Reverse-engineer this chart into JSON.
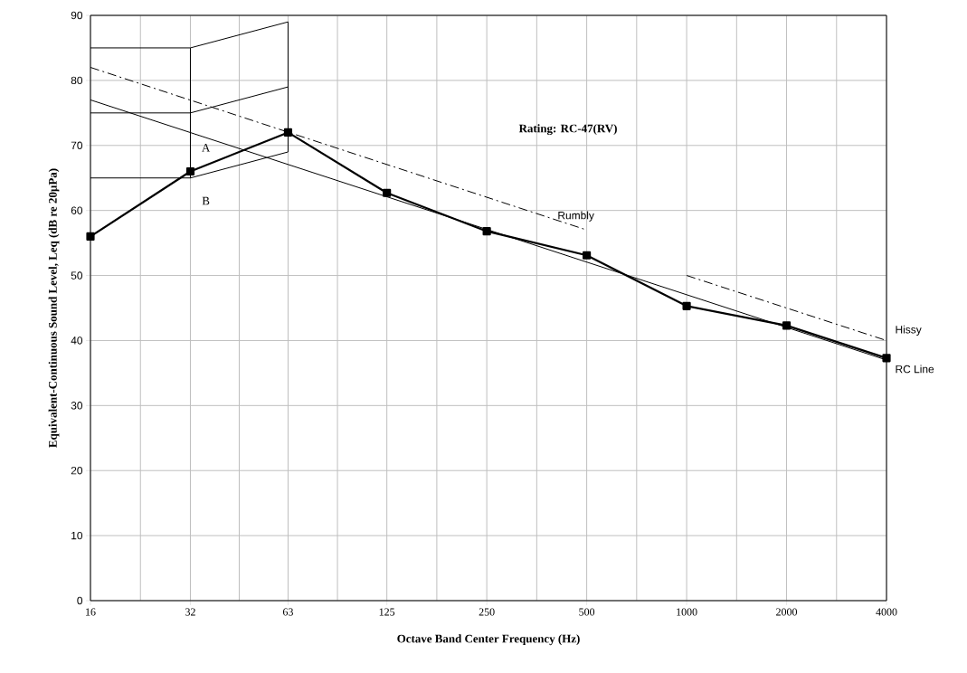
{
  "chart_data": {
    "type": "line",
    "xlabel": "Octave Band Center Frequency (Hz)",
    "ylabel": "Equivalent-Continuous Sound Level, Leq (dB re 20µPa)",
    "log": "x",
    "xlim": [
      16,
      4000
    ],
    "xticks": [
      16,
      32,
      63,
      125,
      250,
      500,
      1000,
      2000,
      4000
    ],
    "ylim": [
      0,
      90
    ],
    "yticks": [
      0,
      10,
      20,
      30,
      40,
      50,
      60,
      70,
      80,
      90
    ],
    "grid": true,
    "series": [
      {
        "color": "#000000",
        "marker": "square",
        "line_style": "solid",
        "x": [
          16,
          32,
          63,
          125,
          250,
          500,
          1000,
          2000,
          4000
        ],
        "values": [
          56,
          66,
          72,
          62.7,
          56.8,
          53.1,
          45.3,
          42.3,
          37.3
        ]
      },
      {
        "name": "RC Line",
        "color": "#000000",
        "marker": "none",
        "line_style": "solid",
        "x": [
          16,
          4000
        ],
        "values": [
          77,
          37
        ]
      },
      {
        "name": "Rumbly",
        "color": "#000000",
        "marker": "none",
        "line_style": "dashdot",
        "x": [
          16,
          500
        ],
        "values": [
          82,
          57
        ]
      },
      {
        "name": "Hissy",
        "color": "#000000",
        "marker": "none",
        "line_style": "dashdot",
        "x": [
          1000,
          4000
        ],
        "values": [
          50,
          40
        ]
      },
      {
        "color": "#000000",
        "marker": "none",
        "line_style": "solid",
        "x": [
          16,
          32,
          63
        ],
        "values": [
          85,
          85,
          89
        ]
      },
      {
        "color": "#000000",
        "marker": "none",
        "line_style": "solid",
        "x": [
          16,
          32,
          63
        ],
        "values": [
          75,
          75,
          79
        ]
      },
      {
        "color": "#000000",
        "marker": "none",
        "line_style": "solid",
        "x": [
          16,
          32,
          63
        ],
        "values": [
          65,
          65,
          69
        ]
      },
      {
        "color": "#000000",
        "marker": "none",
        "line_style": "solid",
        "x": [
          32,
          32
        ],
        "values": [
          65,
          85
        ]
      },
      {
        "color": "#000000",
        "marker": "none",
        "line_style": "solid",
        "x": [
          63,
          63
        ],
        "values": [
          69,
          89
        ]
      }
    ],
    "annotations": [
      "A",
      "B",
      "Rating: RC-47(RV)"
    ]
  }
}
